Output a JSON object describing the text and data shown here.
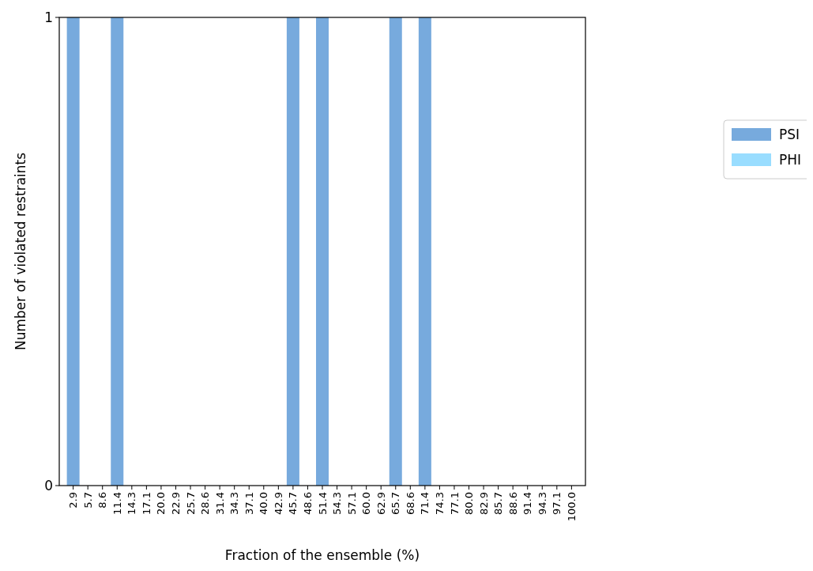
{
  "chart_data": {
    "type": "bar",
    "xlabel": "Fraction of the ensemble (%)",
    "ylabel": "Number of violated restraints",
    "categories": [
      "2.9",
      "5.7",
      "8.6",
      "11.4",
      "14.3",
      "17.1",
      "20.0",
      "22.9",
      "25.7",
      "28.6",
      "31.4",
      "34.3",
      "37.1",
      "40.0",
      "42.9",
      "45.7",
      "48.6",
      "51.4",
      "54.3",
      "57.1",
      "60.0",
      "62.9",
      "65.7",
      "68.6",
      "71.4",
      "74.3",
      "77.1",
      "80.0",
      "82.9",
      "85.7",
      "88.6",
      "91.4",
      "94.3",
      "97.1",
      "100.0"
    ],
    "series": [
      {
        "name": "PSI",
        "color": "#77aadd",
        "values": [
          1,
          0,
          0,
          1,
          0,
          0,
          0,
          0,
          0,
          0,
          0,
          0,
          0,
          0,
          0,
          1,
          0,
          1,
          0,
          0,
          0,
          0,
          1,
          0,
          1,
          0,
          0,
          0,
          0,
          0,
          0,
          0,
          0,
          0,
          0
        ]
      },
      {
        "name": "PHI",
        "color": "#99ddff",
        "values": [
          0,
          0,
          0,
          0,
          0,
          0,
          0,
          0,
          0,
          0,
          0,
          0,
          0,
          0,
          0,
          0,
          0,
          0,
          0,
          0,
          0,
          0,
          0,
          0,
          0,
          0,
          0,
          0,
          0,
          0,
          0,
          0,
          0,
          0,
          0
        ]
      }
    ],
    "ylim": [
      0,
      1
    ],
    "yticks": [
      0,
      1
    ],
    "grid": false,
    "legend": "right"
  }
}
